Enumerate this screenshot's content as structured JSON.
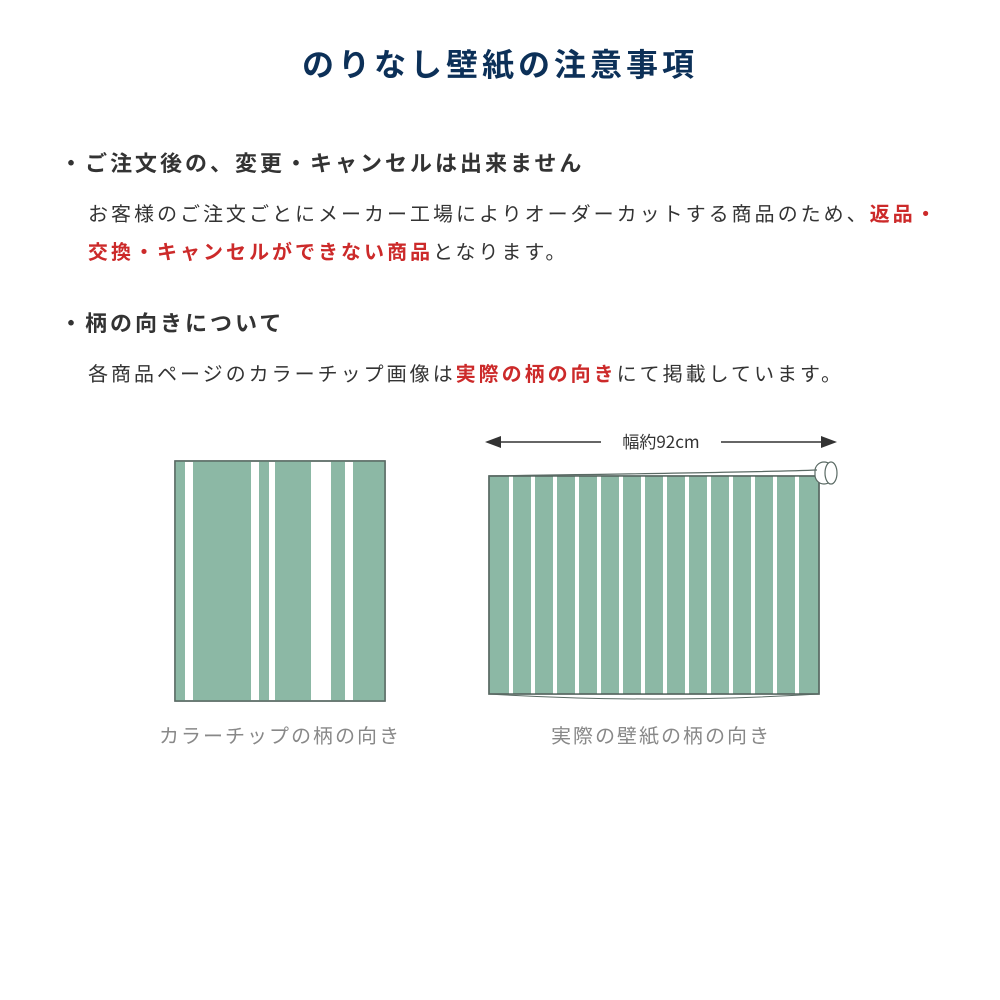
{
  "colors": {
    "title": "#0c3058",
    "text": "#333333",
    "highlight": "#cc2a2a",
    "caption": "#888888",
    "swatch_fill": "#8cb8a5",
    "swatch_stroke": "#5a6a64",
    "arrow": "#333333"
  },
  "title": "のりなし壁紙の注意事項",
  "section1": {
    "bullet": "・ご注文後の、変更・キャンセルは出来ません",
    "body_pre": "お客様のご注文ごとにメーカー工場によりオーダーカットする商品のため、",
    "body_highlight": "返品・交換・キャンセルができない商品",
    "body_post": "となります。"
  },
  "section2": {
    "bullet": "・柄の向きについて",
    "body_pre": "各商品ページのカラーチップ画像は",
    "body_highlight": "実際の柄の向き",
    "body_post": "にて掲載しています。"
  },
  "diagrams": {
    "width_label": "幅約92cm",
    "caption_left": "カラーチップの柄の向き",
    "caption_right": "実際の壁紙の柄の向き"
  }
}
